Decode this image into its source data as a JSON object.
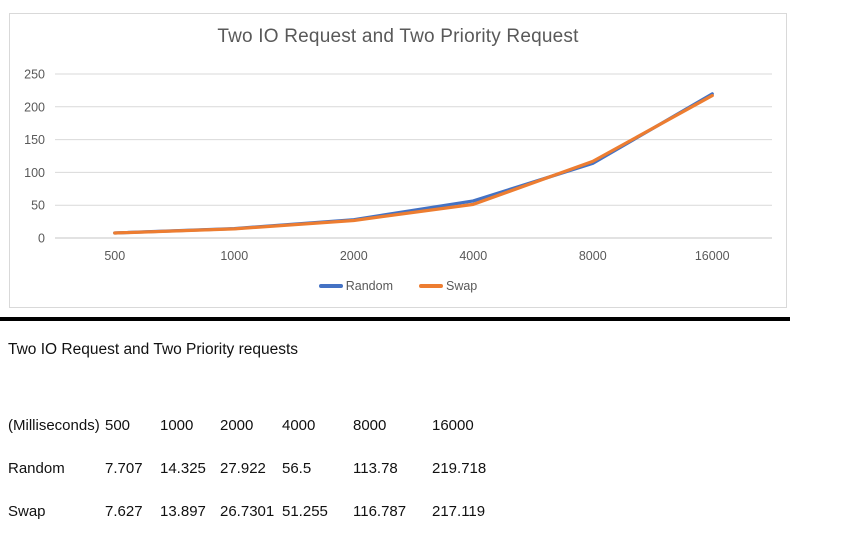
{
  "chart": {
    "title": "Two IO Request and Two Priority Request",
    "border_color": "#d9d9d9",
    "gridline_color": "#d9d9d9",
    "axis_line_color": "#c6c6c6",
    "axis_text_color": "#595959"
  },
  "chart_data": {
    "type": "line",
    "title": "Two IO Request and Two Priority Request",
    "categories": [
      "500",
      "1000",
      "2000",
      "4000",
      "8000",
      "16000"
    ],
    "series": [
      {
        "name": "Random",
        "color": "#4472C4",
        "values": [
          7.707,
          14.325,
          27.922,
          56.5,
          113.78,
          219.718
        ]
      },
      {
        "name": "Swap",
        "color": "#ED7D31",
        "values": [
          7.627,
          13.897,
          26.7301,
          51.255,
          116.787,
          217.119
        ]
      }
    ],
    "xlabel": "",
    "ylabel": "",
    "ylim": [
      0,
      250
    ],
    "yticks": [
      0,
      50,
      100,
      150,
      200,
      250
    ],
    "grid": true,
    "legend_position": "bottom"
  },
  "section": {
    "heading": "Two IO Request and Two Priority requests"
  },
  "table": {
    "rows": [
      [
        "(Milliseconds)",
        "500",
        "1000",
        "2000",
        "4000",
        "8000",
        "16000"
      ],
      [
        "Random",
        "7.707",
        "14.325",
        "27.922",
        "56.5",
        "113.78",
        "219.718"
      ],
      [
        "Swap",
        "7.627",
        "13.897",
        "26.7301",
        "51.255",
        "116.787",
        "217.119"
      ]
    ]
  }
}
